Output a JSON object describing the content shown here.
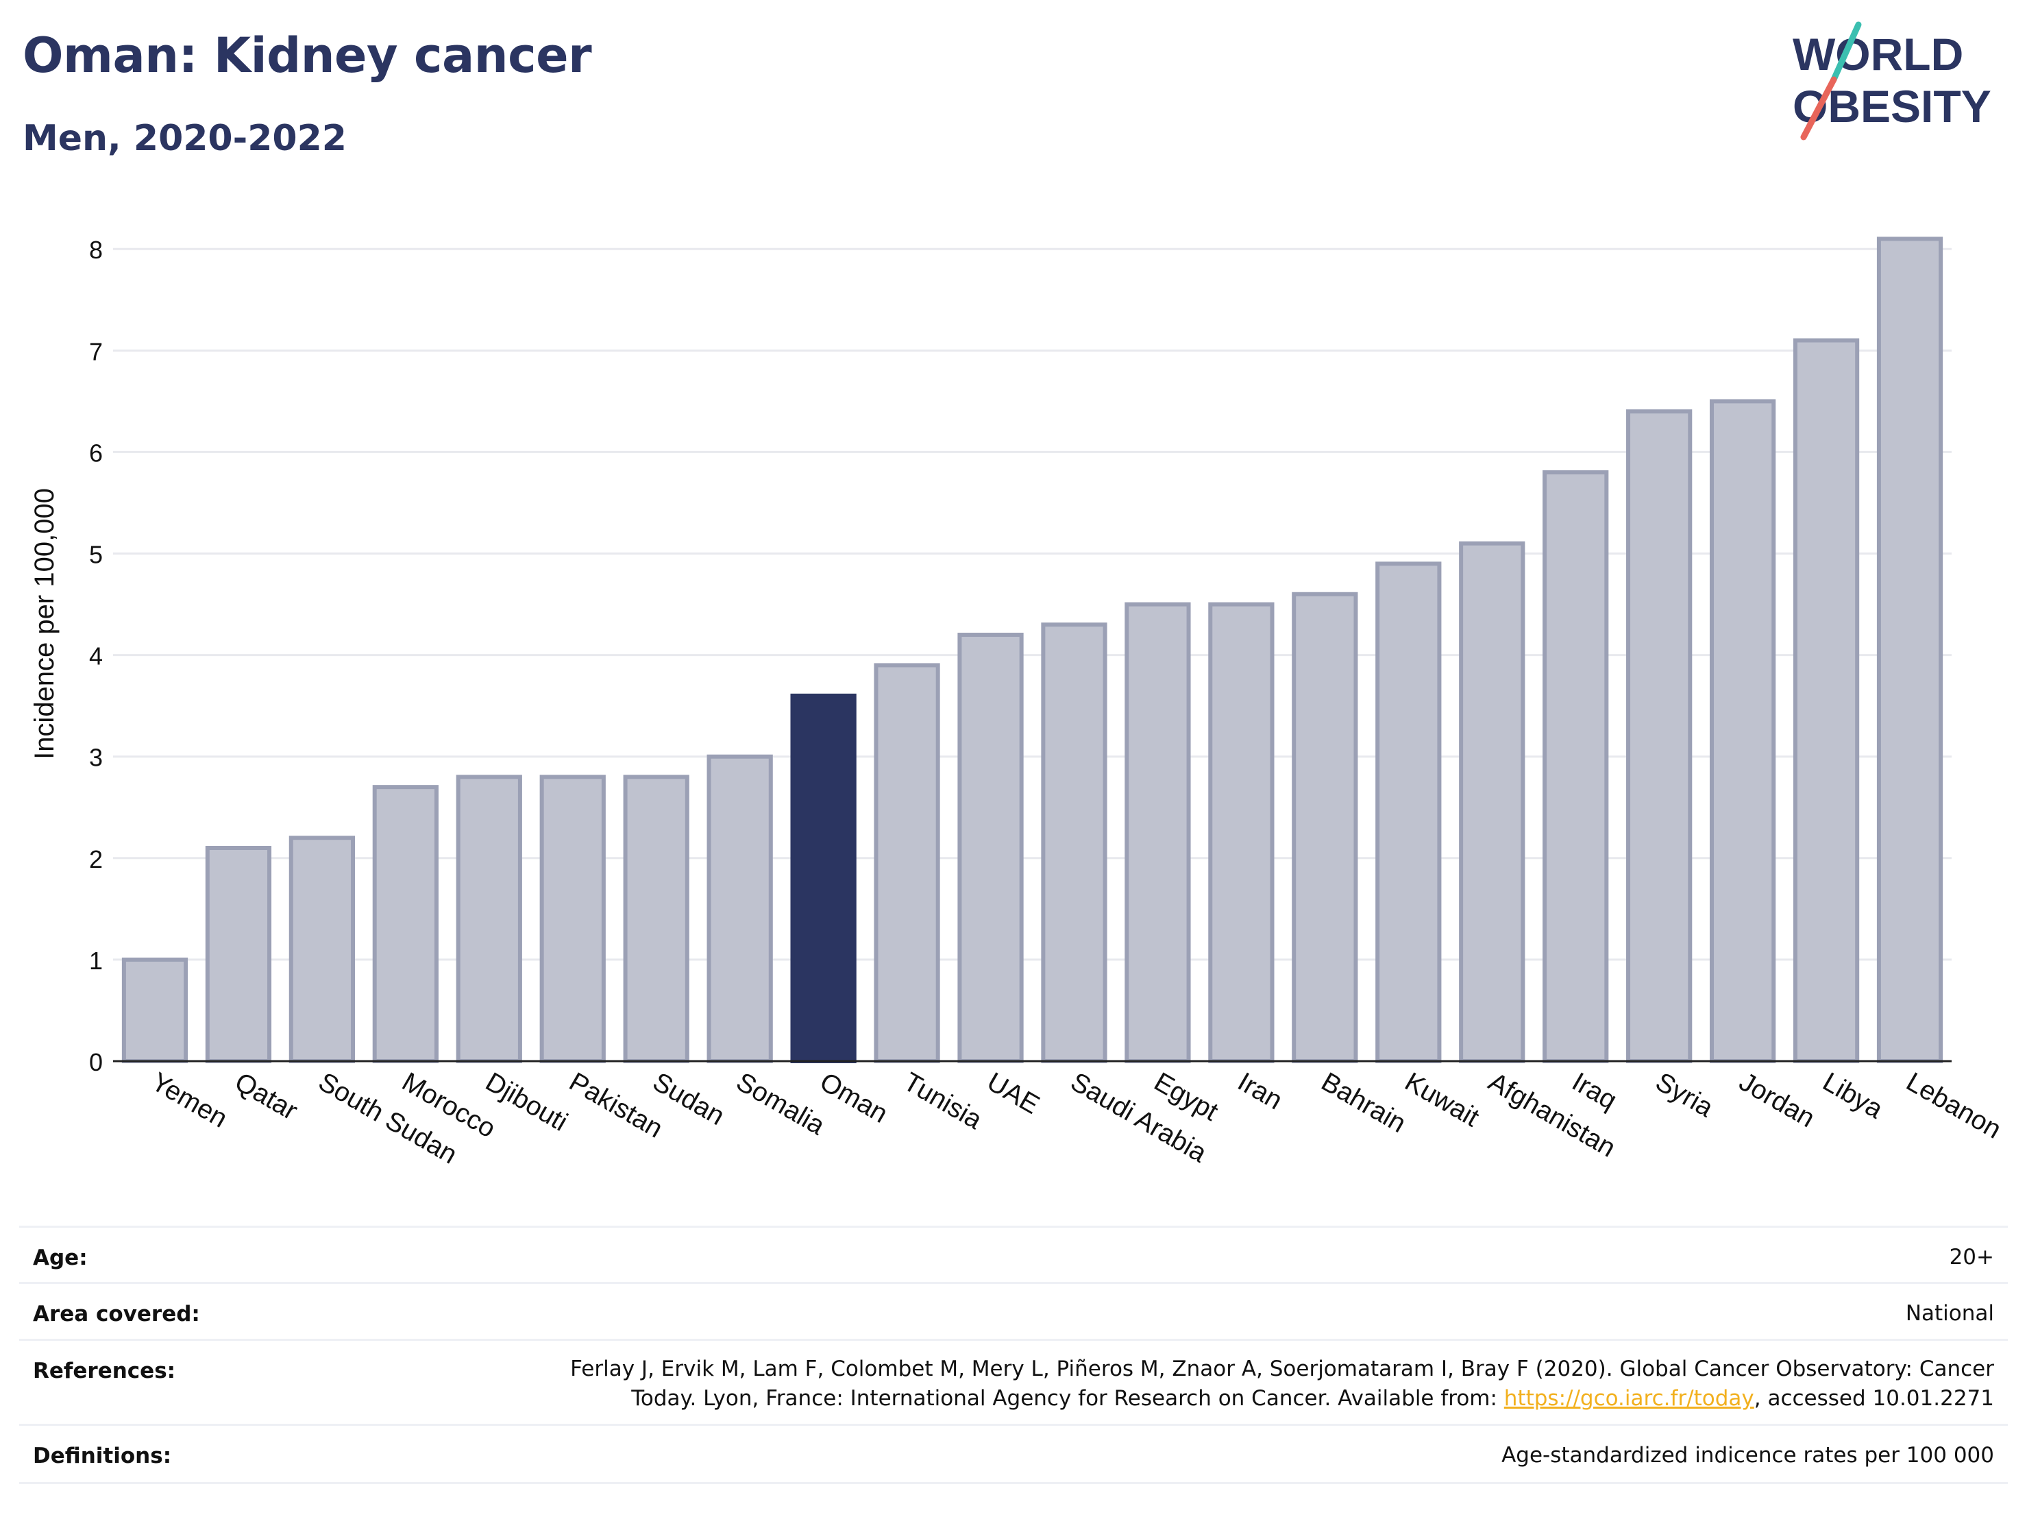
{
  "header": {
    "title": "Oman: Kidney cancer",
    "subtitle": "Men, 2020-2022"
  },
  "logo": {
    "line1": "WORLD",
    "line2": "OBESITY",
    "colors": {
      "text": "#2b3561",
      "slash_top": "#3bbfb0",
      "slash_bottom": "#e8655a"
    }
  },
  "colors": {
    "bar": "#bfc2cf",
    "bar_stroke": "#9ba0b5",
    "highlight": "#2b3561",
    "grid": "#e8e9ee",
    "axis": "#222222"
  },
  "chart_data": {
    "type": "bar",
    "title": "",
    "xlabel": "",
    "ylabel": "Incidence per 100,000",
    "ylim": [
      0,
      8.4
    ],
    "yticks": [
      0,
      1,
      2,
      3,
      4,
      5,
      6,
      7,
      8
    ],
    "grid": "horizontal",
    "highlight": "Oman",
    "categories": [
      "Yemen",
      "Qatar",
      "South Sudan",
      "Morocco",
      "Djibouti",
      "Pakistan",
      "Sudan",
      "Somalia",
      "Oman",
      "Tunisia",
      "UAE",
      "Saudi Arabia",
      "Egypt",
      "Iran",
      "Bahrain",
      "Kuwait",
      "Afghanistan",
      "Iraq",
      "Syria",
      "Jordan",
      "Libya",
      "Lebanon"
    ],
    "values": [
      1.0,
      2.1,
      2.2,
      2.7,
      2.8,
      2.8,
      2.8,
      3.0,
      3.6,
      3.9,
      4.2,
      4.3,
      4.5,
      4.5,
      4.6,
      4.9,
      5.1,
      5.8,
      6.4,
      6.5,
      7.1,
      8.1
    ]
  },
  "meta": {
    "age_label": "Age:",
    "age_value": "20+",
    "area_label": "Area covered:",
    "area_value": "National",
    "references_label": "References:",
    "references_line1": "Ferlay J, Ervik M, Lam F, Colombet M, Mery L, Piñeros M, Znaor A, Soerjomataram I, Bray F (2020). Global Cancer Observatory: Cancer",
    "references_line2_pre": "Today. Lyon, France: International Agency for Research on Cancer. Available from: ",
    "references_link": "https://gco.iarc.fr/today",
    "references_line2_post": ", accessed 10.01.2271",
    "definitions_label": "Definitions:",
    "definitions_value": "Age-standardized indicence rates per 100 000"
  }
}
